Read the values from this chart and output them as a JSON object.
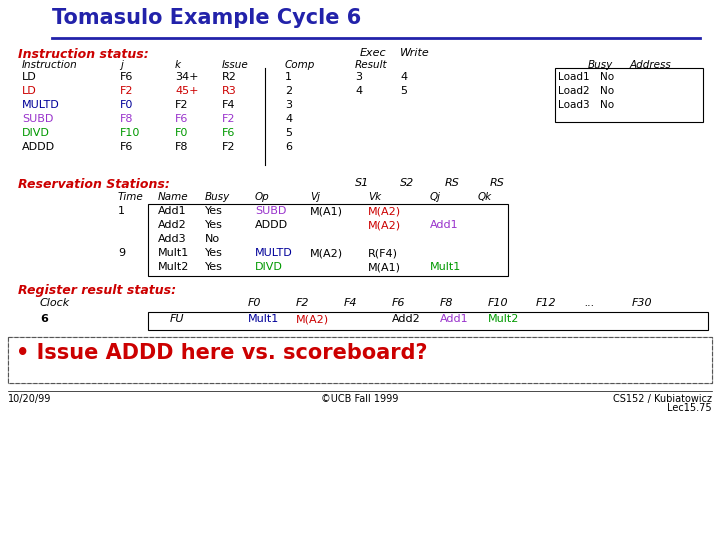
{
  "title": "Tomasulo Example Cycle 6",
  "bg_color": "#ffffff",
  "title_color": "#2222aa",
  "title_underline_color": "#2222aa",
  "section_instruction_status": "Instruction status:",
  "instructions": [
    {
      "name": "LD",
      "j": "F6",
      "k": "34+",
      "l": "R2",
      "issue": "1",
      "exec": "3",
      "write": "4",
      "color": [
        "#000000",
        "#000000",
        "#000000",
        "#000000",
        "#000000",
        "#000000",
        "#000000"
      ]
    },
    {
      "name": "LD",
      "j": "F2",
      "k": "45+",
      "l": "R3",
      "issue": "2",
      "exec": "4",
      "write": "5",
      "color": [
        "#cc0000",
        "#cc0000",
        "#cc0000",
        "#cc0000",
        "#000000",
        "#000000",
        "#000000"
      ]
    },
    {
      "name": "MULTD",
      "j": "F0",
      "k": "F2",
      "l": "F4",
      "issue": "3",
      "exec": "",
      "write": "",
      "color": [
        "#000099",
        "#000099",
        "#000000",
        "#000000",
        "#000000",
        "#000000",
        "#000000"
      ]
    },
    {
      "name": "SUBD",
      "j": "F8",
      "k": "F6",
      "l": "F2",
      "issue": "4",
      "exec": "",
      "write": "",
      "color": [
        "#9933cc",
        "#9933cc",
        "#9933cc",
        "#9933cc",
        "#000000",
        "#000000",
        "#000000"
      ]
    },
    {
      "name": "DIVD",
      "j": "F10",
      "k": "F0",
      "l": "F6",
      "issue": "5",
      "exec": "",
      "write": "",
      "color": [
        "#009900",
        "#009900",
        "#009900",
        "#009900",
        "#000000",
        "#000000",
        "#000000"
      ]
    },
    {
      "name": "ADDD",
      "j": "F6",
      "k": "F8",
      "l": "F2",
      "issue": "6",
      "exec": "",
      "write": "",
      "color": [
        "#000000",
        "#000000",
        "#000000",
        "#000000",
        "#000000",
        "#000000",
        "#000000"
      ]
    }
  ],
  "load_buffers": [
    {
      "name": "Load1",
      "busy": "No"
    },
    {
      "name": "Load2",
      "busy": "No"
    },
    {
      "name": "Load3",
      "busy": "No"
    }
  ],
  "section_reservation": "Reservation Stations:",
  "rs_entries": [
    {
      "time": "1",
      "name": "Add1",
      "busy": "Yes",
      "op": "SUBD",
      "vj": "M(A1)",
      "vk": "M(A2)",
      "qj": "",
      "qk": "",
      "op_color": "#9933cc",
      "vj_color": "#000000",
      "vk_color": "#cc0000",
      "qj_color": "#000000",
      "qk_color": "#000000"
    },
    {
      "time": "",
      "name": "Add2",
      "busy": "Yes",
      "op": "ADDD",
      "vj": "",
      "vk": "M(A2)",
      "qj": "Add1",
      "qk": "",
      "op_color": "#000000",
      "vj_color": "#000000",
      "vk_color": "#cc0000",
      "qj_color": "#9933cc",
      "qk_color": "#000000"
    },
    {
      "time": "",
      "name": "Add3",
      "busy": "No",
      "op": "",
      "vj": "",
      "vk": "",
      "qj": "",
      "qk": "",
      "op_color": "#000000",
      "vj_color": "#000000",
      "vk_color": "#000000",
      "qj_color": "#000000",
      "qk_color": "#000000"
    },
    {
      "time": "9",
      "name": "Mult1",
      "busy": "Yes",
      "op": "MULTD",
      "vj": "M(A2)",
      "vk": "R(F4)",
      "qj": "",
      "qk": "",
      "op_color": "#000099",
      "vj_color": "#000000",
      "vk_color": "#000000",
      "qj_color": "#000000",
      "qk_color": "#000000"
    },
    {
      "time": "",
      "name": "Mult2",
      "busy": "Yes",
      "op": "DIVD",
      "vj": "",
      "vk": "M(A1)",
      "qj": "Mult1",
      "qk": "",
      "op_color": "#009900",
      "vj_color": "#000000",
      "vk_color": "#000000",
      "qj_color": "#009900",
      "qk_color": "#000000"
    }
  ],
  "section_register": "Register result status:",
  "reg_clocks": [
    "F0",
    "F2",
    "F4",
    "F6",
    "F8",
    "F10",
    "F12",
    "...",
    "F30"
  ],
  "reg_values": [
    {
      "val": "Mult1",
      "color": "#000099"
    },
    {
      "val": "M(A2)",
      "color": "#cc0000"
    },
    {
      "val": "",
      "color": "#000000"
    },
    {
      "val": "Add2",
      "color": "#000000"
    },
    {
      "val": "Add1",
      "color": "#9933cc"
    },
    {
      "val": "Mult2",
      "color": "#009900"
    },
    {
      "val": "",
      "color": "#000000"
    },
    {
      "val": "",
      "color": "#000000"
    },
    {
      "val": "",
      "color": "#000000"
    }
  ],
  "bullet_text": " Issue ADDD here vs. scoreboard?",
  "bullet_color": "#cc0000",
  "footer_left": "10/20/99",
  "footer_center": "©UCB Fall 1999",
  "footer_right1": "CS152 / Kubiatowicz",
  "footer_right2": "Lec15.75"
}
